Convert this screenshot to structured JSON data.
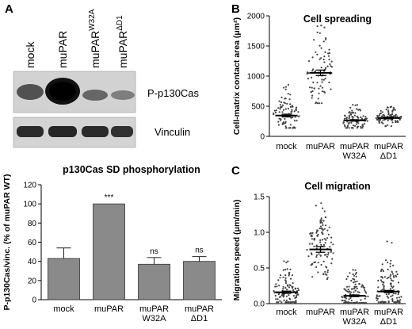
{
  "panels": {
    "A": {
      "letter": "A",
      "blot": {
        "lanes": [
          "mock",
          "muPAR",
          "muPAR",
          "muPAR"
        ],
        "lane_superscripts": [
          "",
          "",
          "W32A",
          "ΔD1"
        ],
        "band_labels": [
          "P-p130Cas",
          "Vinculin"
        ]
      }
    },
    "B": {
      "letter": "B"
    },
    "C": {
      "letter": "C"
    }
  },
  "chart_data": [
    {
      "type": "bar",
      "panel": "A",
      "title": "p130Cas SD phosphorylation",
      "ylabel": "P-p130Cas/vinc. (% of muPAR WT)",
      "xlabel": "",
      "categories": [
        [
          "mock"
        ],
        [
          "muPAR"
        ],
        [
          "muPAR",
          "W32A"
        ],
        [
          "muPAR",
          "ΔD1"
        ]
      ],
      "values": [
        43,
        100,
        37,
        40
      ],
      "errors": [
        11,
        0,
        7,
        5
      ],
      "annotations": [
        "",
        "***",
        "ns",
        "ns"
      ],
      "ylim": [
        0,
        120
      ],
      "yticks": [
        0,
        20,
        40,
        60,
        80,
        100,
        120
      ],
      "bar_color": "#8a8a8a",
      "grid": false
    },
    {
      "type": "scatter",
      "panel": "B",
      "title": "Cell spreading",
      "ylabel": "Cell-matrix contact area (μm²)",
      "xlabel": "",
      "categories": [
        [
          "mock"
        ],
        [
          "muPAR"
        ],
        [
          "muPAR",
          "W32A"
        ],
        [
          "muPAR",
          "ΔD1"
        ]
      ],
      "means": [
        345,
        1055,
        265,
        305
      ],
      "sem": [
        22,
        45,
        12,
        15
      ],
      "spread_min": [
        140,
        550,
        140,
        170
      ],
      "spread_max": [
        860,
        1900,
        560,
        510
      ],
      "ylim": [
        0,
        2000
      ],
      "yticks": [
        0,
        500,
        1000,
        1500,
        2000
      ],
      "grid": false
    },
    {
      "type": "scatter",
      "panel": "C",
      "title": "Cell migration",
      "ylabel": "Migration speed (μm/min)",
      "xlabel": "",
      "categories": [
        [
          "mock"
        ],
        [
          "muPAR"
        ],
        [
          "muPAR",
          "W32A"
        ],
        [
          "muPAR",
          "ΔD1"
        ]
      ],
      "means": [
        0.16,
        0.76,
        0.11,
        0.17
      ],
      "sem": [
        0.015,
        0.04,
        0.012,
        0.015
      ],
      "spread_min": [
        0.02,
        0.3,
        0.01,
        0.02
      ],
      "spread_max": [
        0.6,
        1.47,
        0.7,
        0.92
      ],
      "ylim": [
        0,
        1.5
      ],
      "yticks": [
        0.0,
        0.5,
        1.0,
        1.5
      ],
      "grid": false
    }
  ]
}
